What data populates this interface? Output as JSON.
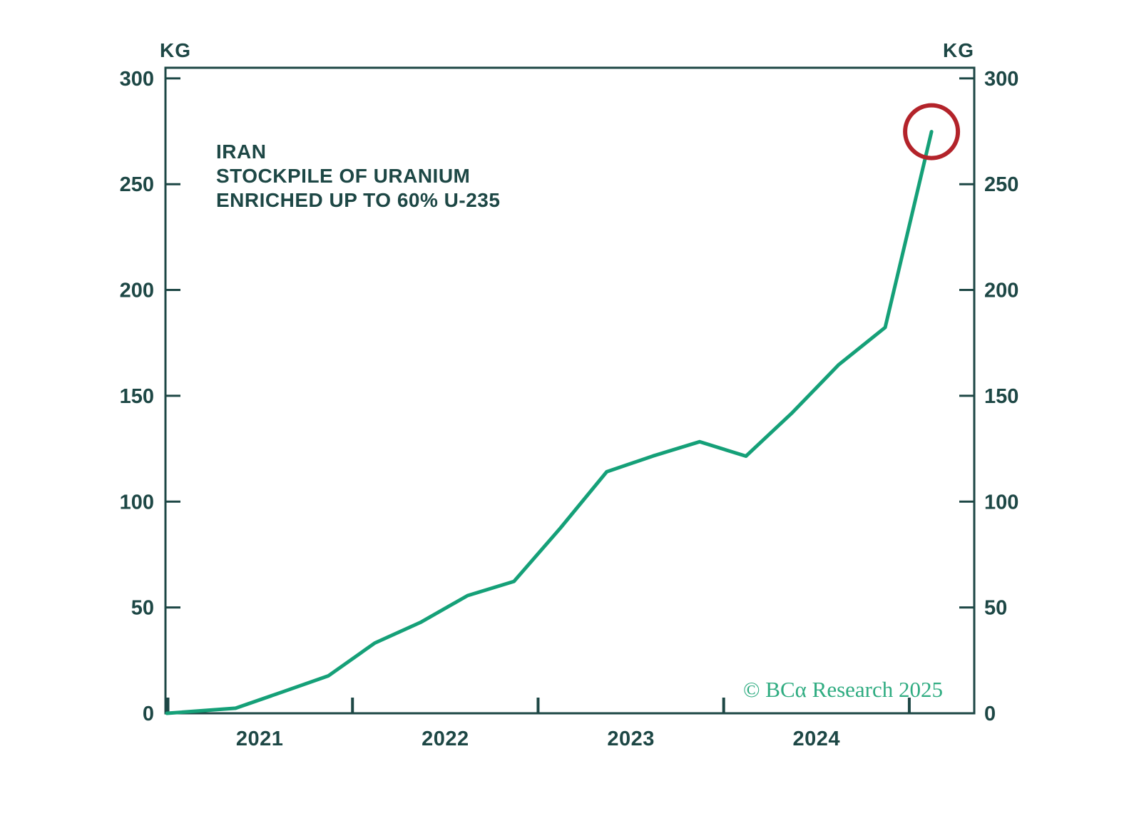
{
  "chart": {
    "title_lines": [
      "IRAN",
      "STOCKPILE OF URANIUM",
      "ENRICHED UP TO 60% U-235"
    ],
    "unit_left": "KG",
    "unit_right": "KG",
    "watermark": "© BCα Research 2025",
    "colors": {
      "background": "#ffffff",
      "text": "#1d4745",
      "axis": "#1d4745",
      "line": "#15a078",
      "highlight_circle": "#b3232a",
      "watermark": "#2fac81"
    }
  },
  "chart_data": {
    "type": "line",
    "title": "IRAN STOCKPILE OF URANIUM ENRICHED UP TO 60% U-235",
    "xlabel": "",
    "ylabel": "KG",
    "ylabel_right": "KG",
    "grid": false,
    "legend": "none",
    "ylim": [
      0,
      305
    ],
    "xlim": [
      2021.0,
      2025.35
    ],
    "yticks": [
      0,
      50,
      100,
      150,
      200,
      250,
      300
    ],
    "xticks": [
      2021,
      2022,
      2023,
      2024,
      2025
    ],
    "xtick_year_labels": [
      "2021",
      "2022",
      "2023",
      "2024"
    ],
    "series": [
      {
        "name": "Iran stockpile of uranium enriched up to 60% U-235 (KG)",
        "x": [
          2021.0,
          2021.37,
          2021.62,
          2021.87,
          2022.12,
          2022.37,
          2022.62,
          2022.87,
          2023.12,
          2023.37,
          2023.62,
          2023.87,
          2024.12,
          2024.37,
          2024.62,
          2024.87,
          2025.12
        ],
        "values": [
          0,
          2.4,
          10,
          17.7,
          33.2,
          43.1,
          55.6,
          62.3,
          87.5,
          114.1,
          121.6,
          128.3,
          121.5,
          142.1,
          164.7,
          182.3,
          274.8
        ]
      }
    ],
    "annotations": [
      {
        "type": "circle",
        "x": 2025.12,
        "y": 274.8,
        "note": "latest value highlighted with red circle"
      }
    ]
  }
}
